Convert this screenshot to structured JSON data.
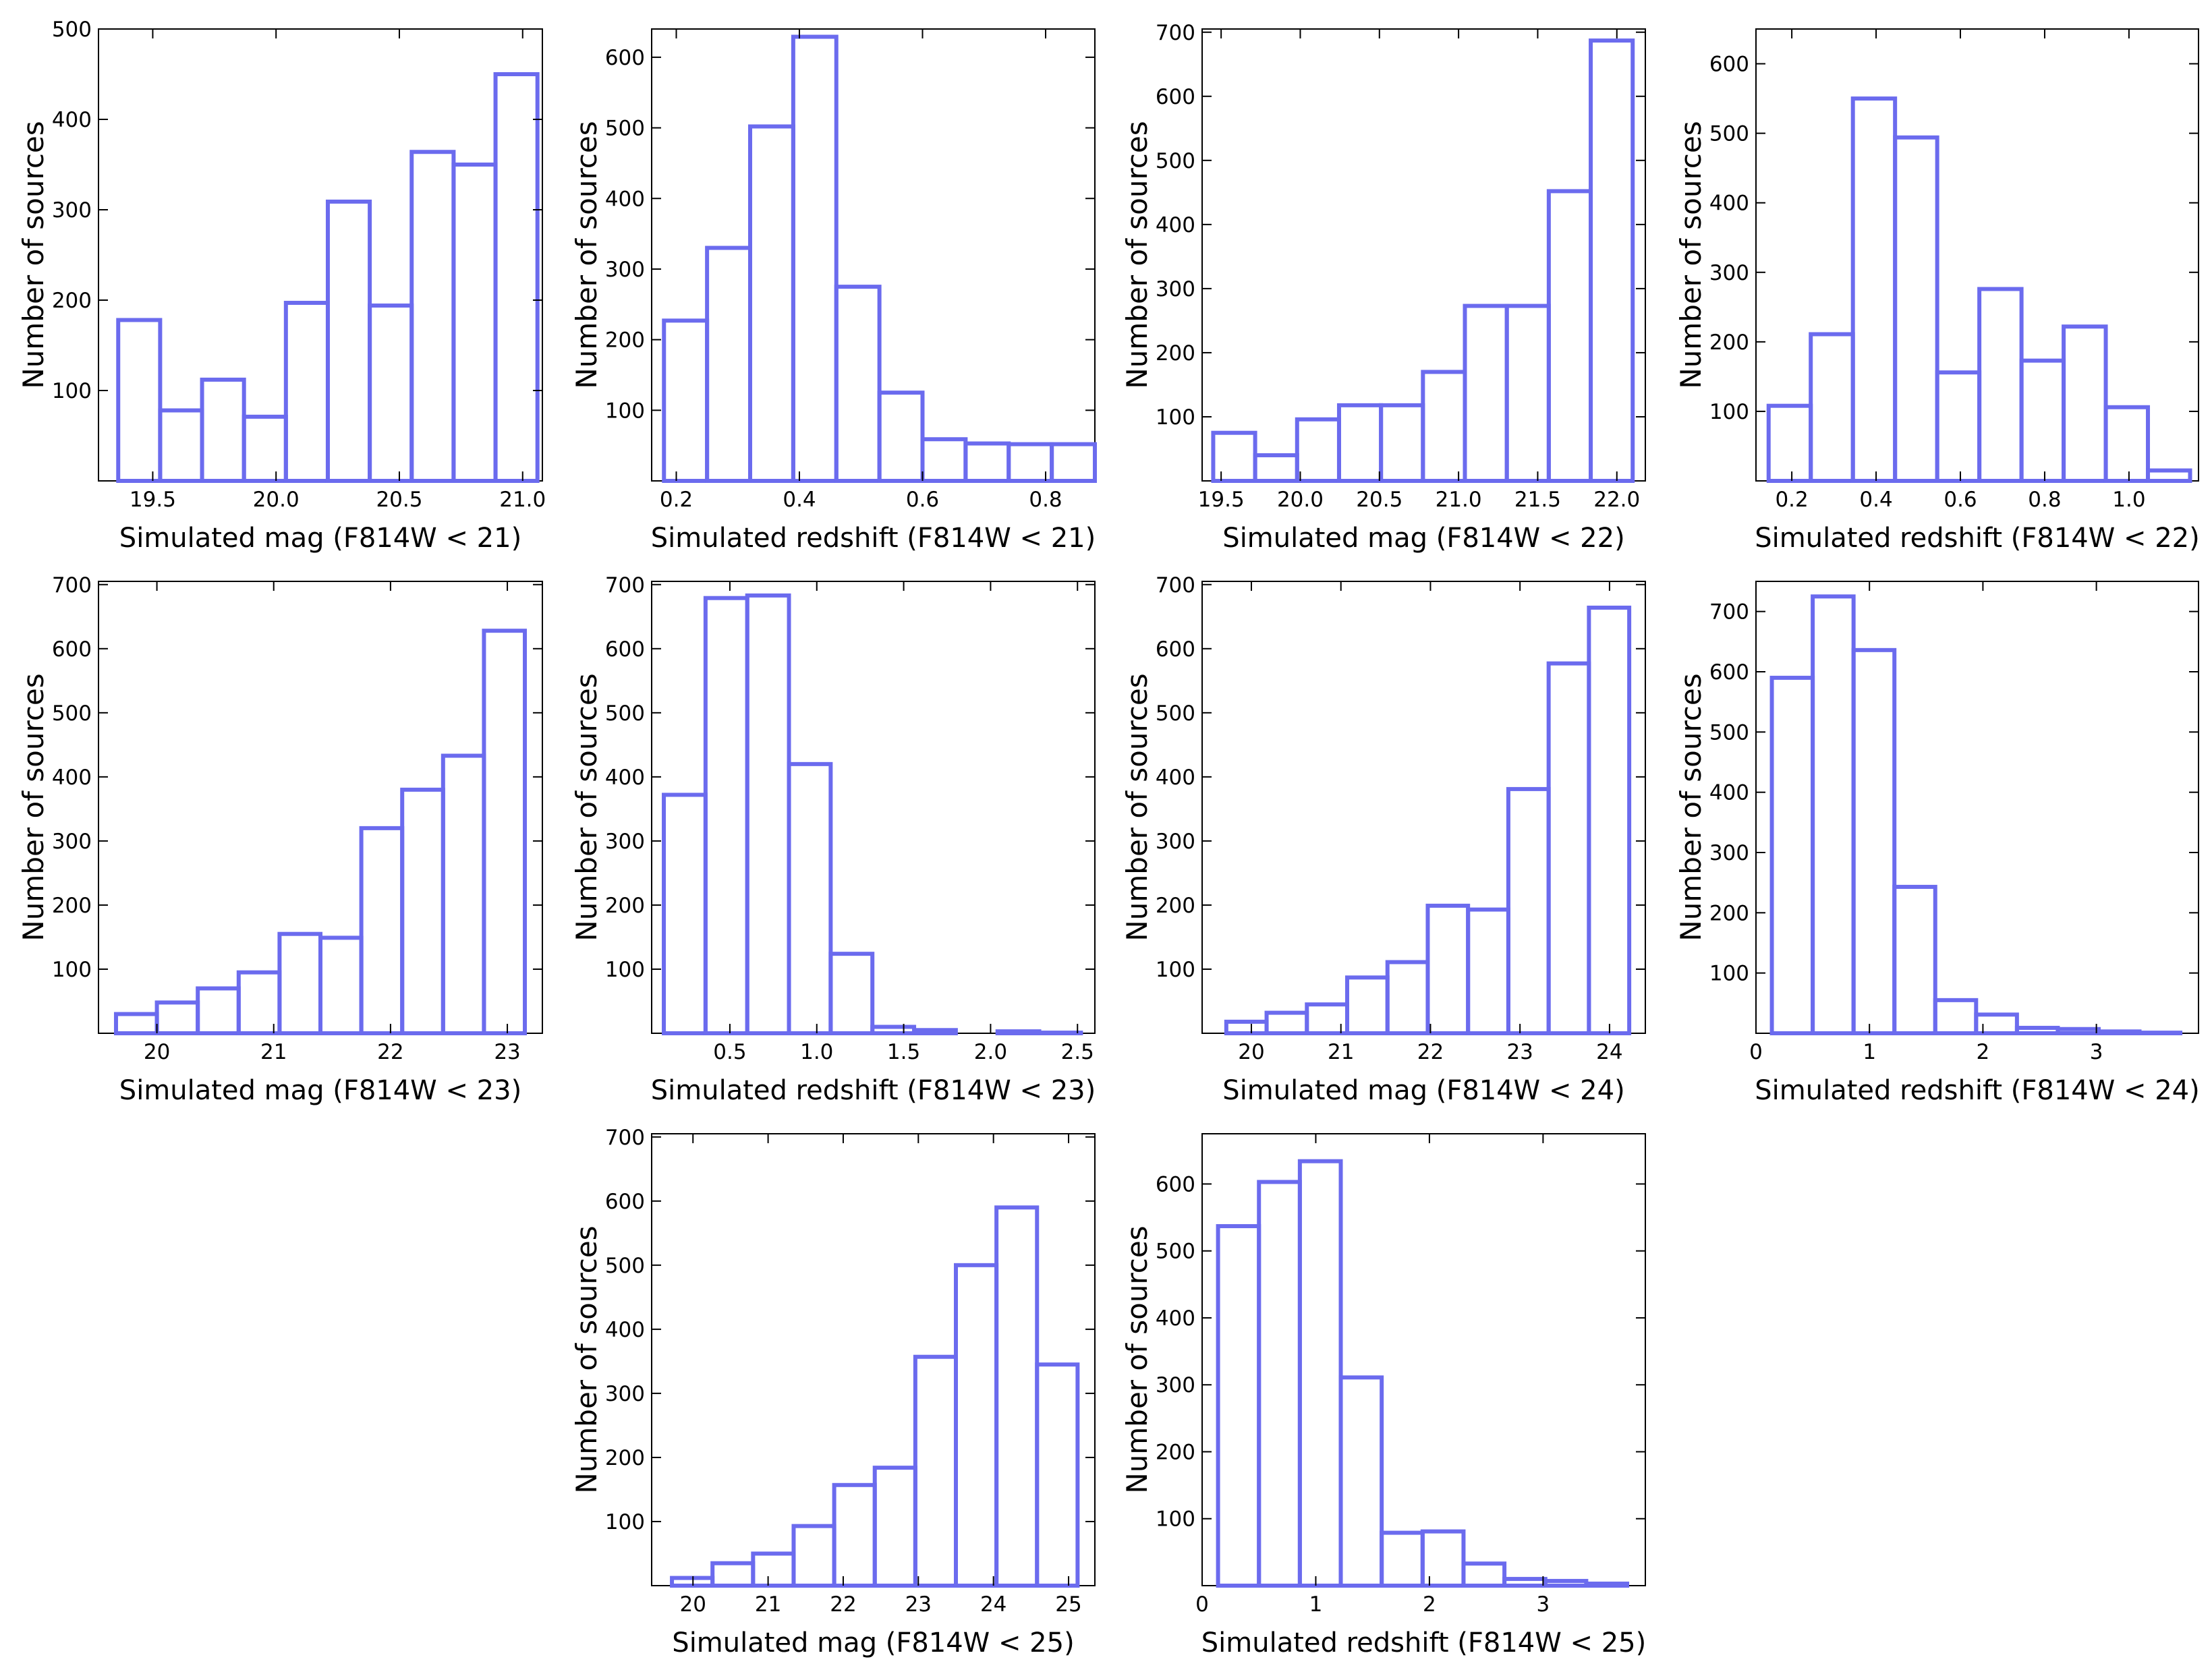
{
  "style": {
    "bar_color": "#6b6bee",
    "axis_color": "#000000",
    "background": "#ffffff"
  },
  "chart_data": [
    {
      "type": "bar",
      "variant": "histogram",
      "xlabel": "Simulated mag (F814W < 21)",
      "ylabel": "Number of sources",
      "xlim": [
        19.28,
        21.08
      ],
      "ylim": [
        0,
        500
      ],
      "xticks": [
        "19.5",
        "20.0",
        "20.5",
        "21.0"
      ],
      "yticks": [
        "100",
        "200",
        "300",
        "400",
        "500"
      ],
      "bin_edges": [
        19.36,
        19.53,
        19.7,
        19.87,
        20.04,
        20.21,
        20.38,
        20.55,
        20.72,
        20.89,
        21.06
      ],
      "values": [
        178,
        78,
        112,
        71,
        197,
        309,
        194,
        364,
        350,
        450
      ]
    },
    {
      "type": "bar",
      "variant": "histogram",
      "xlabel": "Simulated redshift (F814W < 21)",
      "ylabel": "Number of sources",
      "xlim": [
        0.16,
        0.88
      ],
      "ylim": [
        0,
        640
      ],
      "xticks": [
        "0.2",
        "0.4",
        "0.6",
        "0.8"
      ],
      "yticks": [
        "100",
        "200",
        "300",
        "400",
        "500",
        "600"
      ],
      "bin_edges": [
        0.18,
        0.25,
        0.32,
        0.39,
        0.46,
        0.53,
        0.6,
        0.67,
        0.74,
        0.81,
        0.88
      ],
      "values": [
        227,
        330,
        502,
        629,
        275,
        125,
        59,
        53,
        52,
        52
      ]
    },
    {
      "type": "bar",
      "variant": "histogram",
      "xlabel": "Simulated mag (F814W < 22)",
      "ylabel": "Number of sources",
      "xlim": [
        19.38,
        22.18
      ],
      "ylim": [
        0,
        705
      ],
      "xticks": [
        "19.5",
        "20.0",
        "20.5",
        "21.0",
        "21.5",
        "22.0"
      ],
      "yticks": [
        "100",
        "200",
        "300",
        "400",
        "500",
        "600",
        "700"
      ],
      "bin_edges": [
        19.45,
        19.715,
        19.98,
        20.245,
        20.51,
        20.775,
        21.04,
        21.305,
        21.57,
        21.835,
        22.1
      ],
      "values": [
        75,
        40,
        96,
        118,
        118,
        170,
        273,
        273,
        452,
        687
      ]
    },
    {
      "type": "bar",
      "variant": "histogram",
      "xlabel": "Simulated redshift (F814W < 22)",
      "ylabel": "Number of sources",
      "xlim": [
        0.115,
        1.165
      ],
      "ylim": [
        0,
        650
      ],
      "xticks": [
        "0.2",
        "0.4",
        "0.6",
        "0.8",
        "1.0"
      ],
      "yticks": [
        "100",
        "200",
        "300",
        "400",
        "500",
        "600"
      ],
      "bin_edges": [
        0.145,
        0.245,
        0.345,
        0.445,
        0.545,
        0.645,
        0.745,
        0.845,
        0.945,
        1.045,
        1.145
      ],
      "values": [
        108,
        211,
        550,
        494,
        156,
        276,
        173,
        222,
        106,
        15
      ]
    },
    {
      "type": "bar",
      "variant": "histogram",
      "xlabel": "Simulated mag (F814W < 23)",
      "ylabel": "Number of sources",
      "xlim": [
        19.5,
        23.3
      ],
      "ylim": [
        0,
        705
      ],
      "xticks": [
        "20",
        "21",
        "22",
        "23"
      ],
      "yticks": [
        "100",
        "200",
        "300",
        "400",
        "500",
        "600",
        "700"
      ],
      "bin_edges": [
        19.65,
        20.0,
        20.35,
        20.7,
        21.05,
        21.4,
        21.75,
        22.1,
        22.45,
        22.8,
        23.15
      ],
      "values": [
        30,
        48,
        70,
        95,
        155,
        149,
        320,
        380,
        433,
        628
      ]
    },
    {
      "type": "bar",
      "variant": "histogram",
      "xlabel": "Simulated redshift (F814W < 23)",
      "ylabel": "Number of sources",
      "xlim": [
        0.05,
        2.6
      ],
      "ylim": [
        0,
        705
      ],
      "xticks": [
        "0.5",
        "1.0",
        "1.5",
        "2.0",
        "2.5"
      ],
      "yticks": [
        "100",
        "200",
        "300",
        "400",
        "500",
        "600",
        "700"
      ],
      "bin_edges": [
        0.12,
        0.36,
        0.6,
        0.84,
        1.08,
        1.32,
        1.56,
        1.8,
        2.04,
        2.28,
        2.52
      ],
      "values": [
        372,
        679,
        683,
        420,
        124,
        10,
        5,
        0,
        3,
        1
      ]
    },
    {
      "type": "bar",
      "variant": "histogram",
      "xlabel": "Simulated mag (F814W < 24)",
      "ylabel": "Number of sources",
      "xlim": [
        19.45,
        24.4
      ],
      "ylim": [
        0,
        705
      ],
      "xticks": [
        "20",
        "21",
        "22",
        "23",
        "24"
      ],
      "yticks": [
        "100",
        "200",
        "300",
        "400",
        "500",
        "600",
        "700"
      ],
      "bin_edges": [
        19.72,
        20.17,
        20.62,
        21.07,
        21.52,
        21.97,
        22.42,
        22.87,
        23.32,
        23.77,
        24.22
      ],
      "values": [
        18,
        32,
        45,
        87,
        111,
        199,
        193,
        381,
        577,
        664
      ]
    },
    {
      "type": "bar",
      "variant": "histogram",
      "xlabel": "Simulated redshift (F814W < 24)",
      "ylabel": "Number of sources",
      "xlim": [
        0,
        3.9
      ],
      "ylim": [
        0,
        750
      ],
      "xticks": [
        "0",
        "1",
        "2",
        "3"
      ],
      "yticks": [
        "100",
        "200",
        "300",
        "400",
        "500",
        "600",
        "700"
      ],
      "bin_edges": [
        0.14,
        0.5,
        0.86,
        1.22,
        1.58,
        1.94,
        2.3,
        2.66,
        3.02,
        3.38,
        3.74
      ],
      "values": [
        590,
        725,
        636,
        243,
        55,
        31,
        9,
        7,
        3,
        1
      ]
    },
    {
      "type": "bar",
      "variant": "histogram",
      "xlabel": "Simulated mag (F814W < 25)",
      "ylabel": "Number of sources",
      "xlim": [
        19.45,
        25.35
      ],
      "ylim": [
        0,
        705
      ],
      "xticks": [
        "20",
        "21",
        "22",
        "23",
        "24",
        "25"
      ],
      "yticks": [
        "100",
        "200",
        "300",
        "400",
        "500",
        "600",
        "700"
      ],
      "bin_edges": [
        19.72,
        20.26,
        20.8,
        21.34,
        21.88,
        22.42,
        22.96,
        23.5,
        24.04,
        24.58,
        25.12
      ],
      "values": [
        12,
        35,
        50,
        93,
        157,
        184,
        357,
        500,
        590,
        345
      ]
    },
    {
      "type": "bar",
      "variant": "histogram",
      "xlabel": "Simulated redshift (F814W < 25)",
      "ylabel": "Number of sources",
      "xlim": [
        0,
        3.9
      ],
      "ylim": [
        0,
        675
      ],
      "xticks": [
        "0",
        "1",
        "2",
        "3"
      ],
      "yticks": [
        "100",
        "200",
        "300",
        "400",
        "500",
        "600"
      ],
      "bin_edges": [
        0.14,
        0.5,
        0.86,
        1.22,
        1.58,
        1.94,
        2.3,
        2.66,
        3.02,
        3.38,
        3.74
      ],
      "values": [
        537,
        603,
        634,
        311,
        79,
        81,
        33,
        10,
        7,
        3
      ]
    }
  ]
}
